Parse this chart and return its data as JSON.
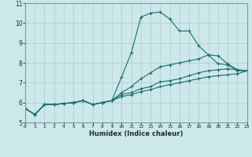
{
  "xlabel": "Humidex (Indice chaleur)",
  "ylabel": "",
  "background_color": "#cde8ea",
  "grid_color": "#aacccc",
  "line_color": "#1a6e6a",
  "xlim": [
    0,
    23
  ],
  "ylim": [
    5,
    11
  ],
  "xticks": [
    0,
    1,
    2,
    3,
    4,
    5,
    6,
    7,
    8,
    9,
    10,
    11,
    12,
    13,
    14,
    15,
    16,
    17,
    18,
    19,
    20,
    21,
    22,
    23
  ],
  "yticks": [
    5,
    6,
    7,
    8,
    9,
    10,
    11
  ],
  "series": [
    {
      "x": [
        0,
        1,
        2,
        3,
        4,
        5,
        6,
        7,
        8,
        9,
        10,
        11,
        12,
        13,
        14,
        15,
        16,
        17,
        18,
        19,
        20,
        21,
        22,
        23
      ],
      "y": [
        5.7,
        5.4,
        5.9,
        5.9,
        5.95,
        6.0,
        6.1,
        5.9,
        6.0,
        6.1,
        7.3,
        8.5,
        10.3,
        10.5,
        10.55,
        10.2,
        9.6,
        9.6,
        8.85,
        8.4,
        7.95,
        7.9,
        7.6,
        7.6
      ]
    },
    {
      "x": [
        0,
        1,
        2,
        3,
        4,
        5,
        6,
        7,
        8,
        9,
        10,
        11,
        12,
        13,
        14,
        15,
        16,
        17,
        18,
        19,
        20,
        21,
        22,
        23
      ],
      "y": [
        5.7,
        5.4,
        5.9,
        5.9,
        5.95,
        6.0,
        6.1,
        5.9,
        6.0,
        6.1,
        6.5,
        6.8,
        7.2,
        7.5,
        7.8,
        7.9,
        8.0,
        8.1,
        8.2,
        8.4,
        8.35,
        7.95,
        7.65,
        7.6
      ]
    },
    {
      "x": [
        0,
        1,
        2,
        3,
        4,
        5,
        6,
        7,
        8,
        9,
        10,
        11,
        12,
        13,
        14,
        15,
        16,
        17,
        18,
        19,
        20,
        21,
        22,
        23
      ],
      "y": [
        5.7,
        5.4,
        5.9,
        5.9,
        5.95,
        6.0,
        6.1,
        5.9,
        6.0,
        6.1,
        6.4,
        6.5,
        6.7,
        6.8,
        7.05,
        7.1,
        7.2,
        7.35,
        7.5,
        7.6,
        7.65,
        7.7,
        7.65,
        7.6
      ]
    },
    {
      "x": [
        0,
        1,
        2,
        3,
        4,
        5,
        6,
        7,
        8,
        9,
        10,
        11,
        12,
        13,
        14,
        15,
        16,
        17,
        18,
        19,
        20,
        21,
        22,
        23
      ],
      "y": [
        5.7,
        5.4,
        5.9,
        5.9,
        5.95,
        6.0,
        6.1,
        5.9,
        6.0,
        6.1,
        6.3,
        6.4,
        6.55,
        6.65,
        6.8,
        6.9,
        7.0,
        7.1,
        7.2,
        7.3,
        7.35,
        7.4,
        7.45,
        7.6
      ]
    }
  ]
}
